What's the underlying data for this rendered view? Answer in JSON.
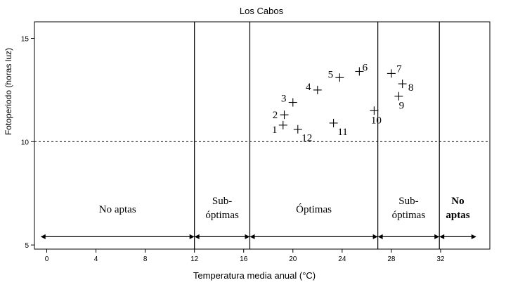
{
  "chart_data": {
    "type": "scatter",
    "title": "Los Cabos",
    "xlabel": "Temperatura media anual (°C)",
    "ylabel": "Fotoperiodo (horas luz)",
    "xlim": [
      -1,
      36
    ],
    "ylim": [
      4.8,
      15.8
    ],
    "xticks": [
      0,
      4,
      8,
      12,
      16,
      20,
      24,
      28,
      32
    ],
    "yticks": [
      5,
      10,
      15
    ],
    "grid": false,
    "points": [
      {
        "label": "1",
        "x": 19.2,
        "y": 10.8
      },
      {
        "label": "2",
        "x": 19.3,
        "y": 11.3
      },
      {
        "label": "3",
        "x": 20.0,
        "y": 11.9
      },
      {
        "label": "4",
        "x": 22.0,
        "y": 12.5
      },
      {
        "label": "5",
        "x": 23.8,
        "y": 13.1
      },
      {
        "label": "6",
        "x": 25.4,
        "y": 13.4
      },
      {
        "label": "7",
        "x": 28.0,
        "y": 13.3
      },
      {
        "label": "8",
        "x": 28.9,
        "y": 12.8
      },
      {
        "label": "9",
        "x": 28.6,
        "y": 12.2
      },
      {
        "label": "10",
        "x": 26.6,
        "y": 11.5
      },
      {
        "label": "11",
        "x": 23.3,
        "y": 10.9
      },
      {
        "label": "12",
        "x": 20.4,
        "y": 10.6
      }
    ],
    "hline": {
      "y": 10,
      "style": "dashed"
    },
    "vlines": [
      12,
      16.5,
      26.9,
      31.9
    ],
    "zones": [
      {
        "lines": [
          "No aptas"
        ],
        "from": -0.5,
        "to": 12,
        "bold": false
      },
      {
        "lines": [
          "Sub-",
          "óptimas"
        ],
        "from": 12,
        "to": 16.5,
        "bold": false
      },
      {
        "lines": [
          "Óptimas"
        ],
        "from": 16.5,
        "to": 26.9,
        "bold": false
      },
      {
        "lines": [
          "Sub-",
          "óptimas"
        ],
        "from": 26.9,
        "to": 31.9,
        "bold": false
      },
      {
        "lines": [
          "No",
          "aptas"
        ],
        "from": 31.9,
        "to": 34.9,
        "bold": true
      }
    ],
    "zone_arrow_y": 5.4
  }
}
